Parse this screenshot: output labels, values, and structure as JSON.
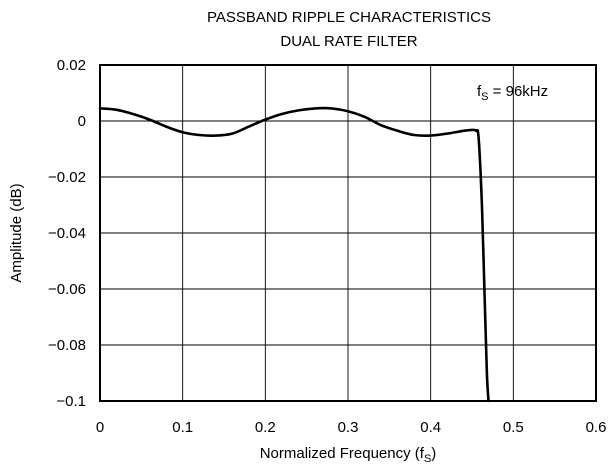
{
  "chart_data": {
    "type": "line",
    "title": "PASSBAND RIPPLE CHARACTERISTICS",
    "subtitle": "DUAL RATE FILTER",
    "xlabel": "Normalized Frequency (f",
    "xlabel_sub": "S",
    "xlabel_tail": ")",
    "ylabel": "Amplitude (dB)",
    "xlim": [
      0,
      0.6
    ],
    "ylim": [
      -0.1,
      0.02
    ],
    "x_ticks": [
      0,
      0.1,
      0.2,
      0.3,
      0.4,
      0.5,
      0.6
    ],
    "x_tick_labels": [
      "0",
      "0.1",
      "0.2",
      "0.3",
      "0.4",
      "0.5",
      "0.6"
    ],
    "y_ticks": [
      0.02,
      0,
      -0.02,
      -0.04,
      -0.06,
      -0.08,
      -0.1
    ],
    "y_tick_labels": [
      "0.02",
      "0",
      "−0.02",
      "−0.04",
      "−0.06",
      "−0.08",
      "−0.1"
    ],
    "grid": true,
    "annotation": {
      "prefix": "f",
      "sub": "S",
      "suffix": " = 96kHz"
    },
    "series": [
      {
        "x": [
          0,
          0.02,
          0.04,
          0.06,
          0.08,
          0.1,
          0.12,
          0.14,
          0.16,
          0.18,
          0.2,
          0.22,
          0.24,
          0.26,
          0.28,
          0.3,
          0.32,
          0.34,
          0.36,
          0.38,
          0.4,
          0.42,
          0.44,
          0.45,
          0.455,
          0.458,
          0.462,
          0.465,
          0.468,
          0.47
        ],
        "y": [
          0.0045,
          0.004,
          0.0025,
          0.0005,
          -0.002,
          -0.004,
          -0.005,
          -0.0052,
          -0.0045,
          -0.002,
          0.0005,
          0.0025,
          0.0038,
          0.0045,
          0.0045,
          0.0035,
          0.0015,
          -0.0015,
          -0.0035,
          -0.005,
          -0.0052,
          -0.0045,
          -0.0035,
          -0.0032,
          -0.0035,
          -0.006,
          -0.03,
          -0.06,
          -0.09,
          -0.1
        ]
      }
    ]
  }
}
